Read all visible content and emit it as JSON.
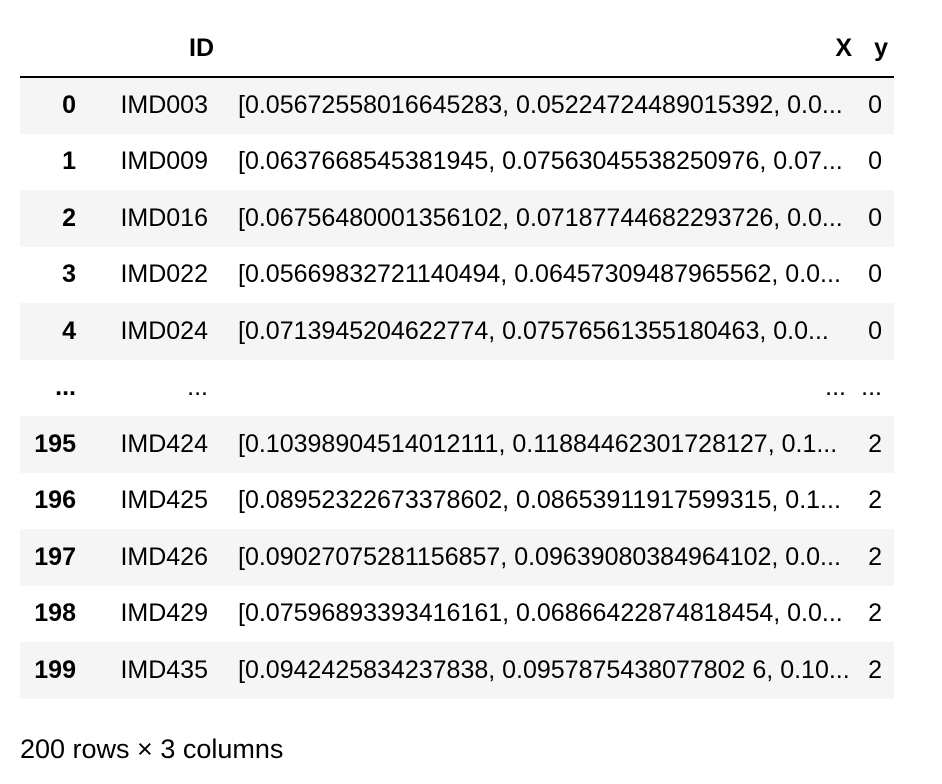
{
  "table": {
    "columns": {
      "index": "",
      "id": "ID",
      "x": "X",
      "y": "y"
    },
    "rows": [
      {
        "index": "0",
        "id": "IMD003",
        "x": "[0.05672558016645283, 0.05224724489015392, 0.0...",
        "y": "0"
      },
      {
        "index": "1",
        "id": "IMD009",
        "x": "[0.0637668545381945, 0.07563045538250976, 0.07...",
        "y": "0"
      },
      {
        "index": "2",
        "id": "IMD016",
        "x": "[0.06756480001356102, 0.07187744682293726, 0.0...",
        "y": "0"
      },
      {
        "index": "3",
        "id": "IMD022",
        "x": "[0.05669832721140494, 0.06457309487965562, 0.0...",
        "y": "0"
      },
      {
        "index": "4",
        "id": "IMD024",
        "x": "[0.0713945204622774, 0.07576561355180463, 0.0...",
        "y": "0"
      },
      {
        "index": "...",
        "id": "...",
        "x": "...",
        "y": "..."
      },
      {
        "index": "195",
        "id": "IMD424",
        "x": "[0.10398904514012111, 0.11884462301728127, 0.1...",
        "y": "2"
      },
      {
        "index": "196",
        "id": "IMD425",
        "x": "[0.08952322673378602, 0.08653911917599315, 0.1...",
        "y": "2"
      },
      {
        "index": "197",
        "id": "IMD426",
        "x": "[0.09027075281156857, 0.09639080384964102, 0.0...",
        "y": "2"
      },
      {
        "index": "198",
        "id": "IMD429",
        "x": "[0.07596893393416161, 0.06866422874818454, 0.0...",
        "y": "2"
      },
      {
        "index": "199",
        "id": "IMD435",
        "x": "[0.0942425834237838, 0.0957875438077802 6, 0.10...",
        "y": "2"
      }
    ]
  },
  "summary": "200 rows × 3 columns"
}
